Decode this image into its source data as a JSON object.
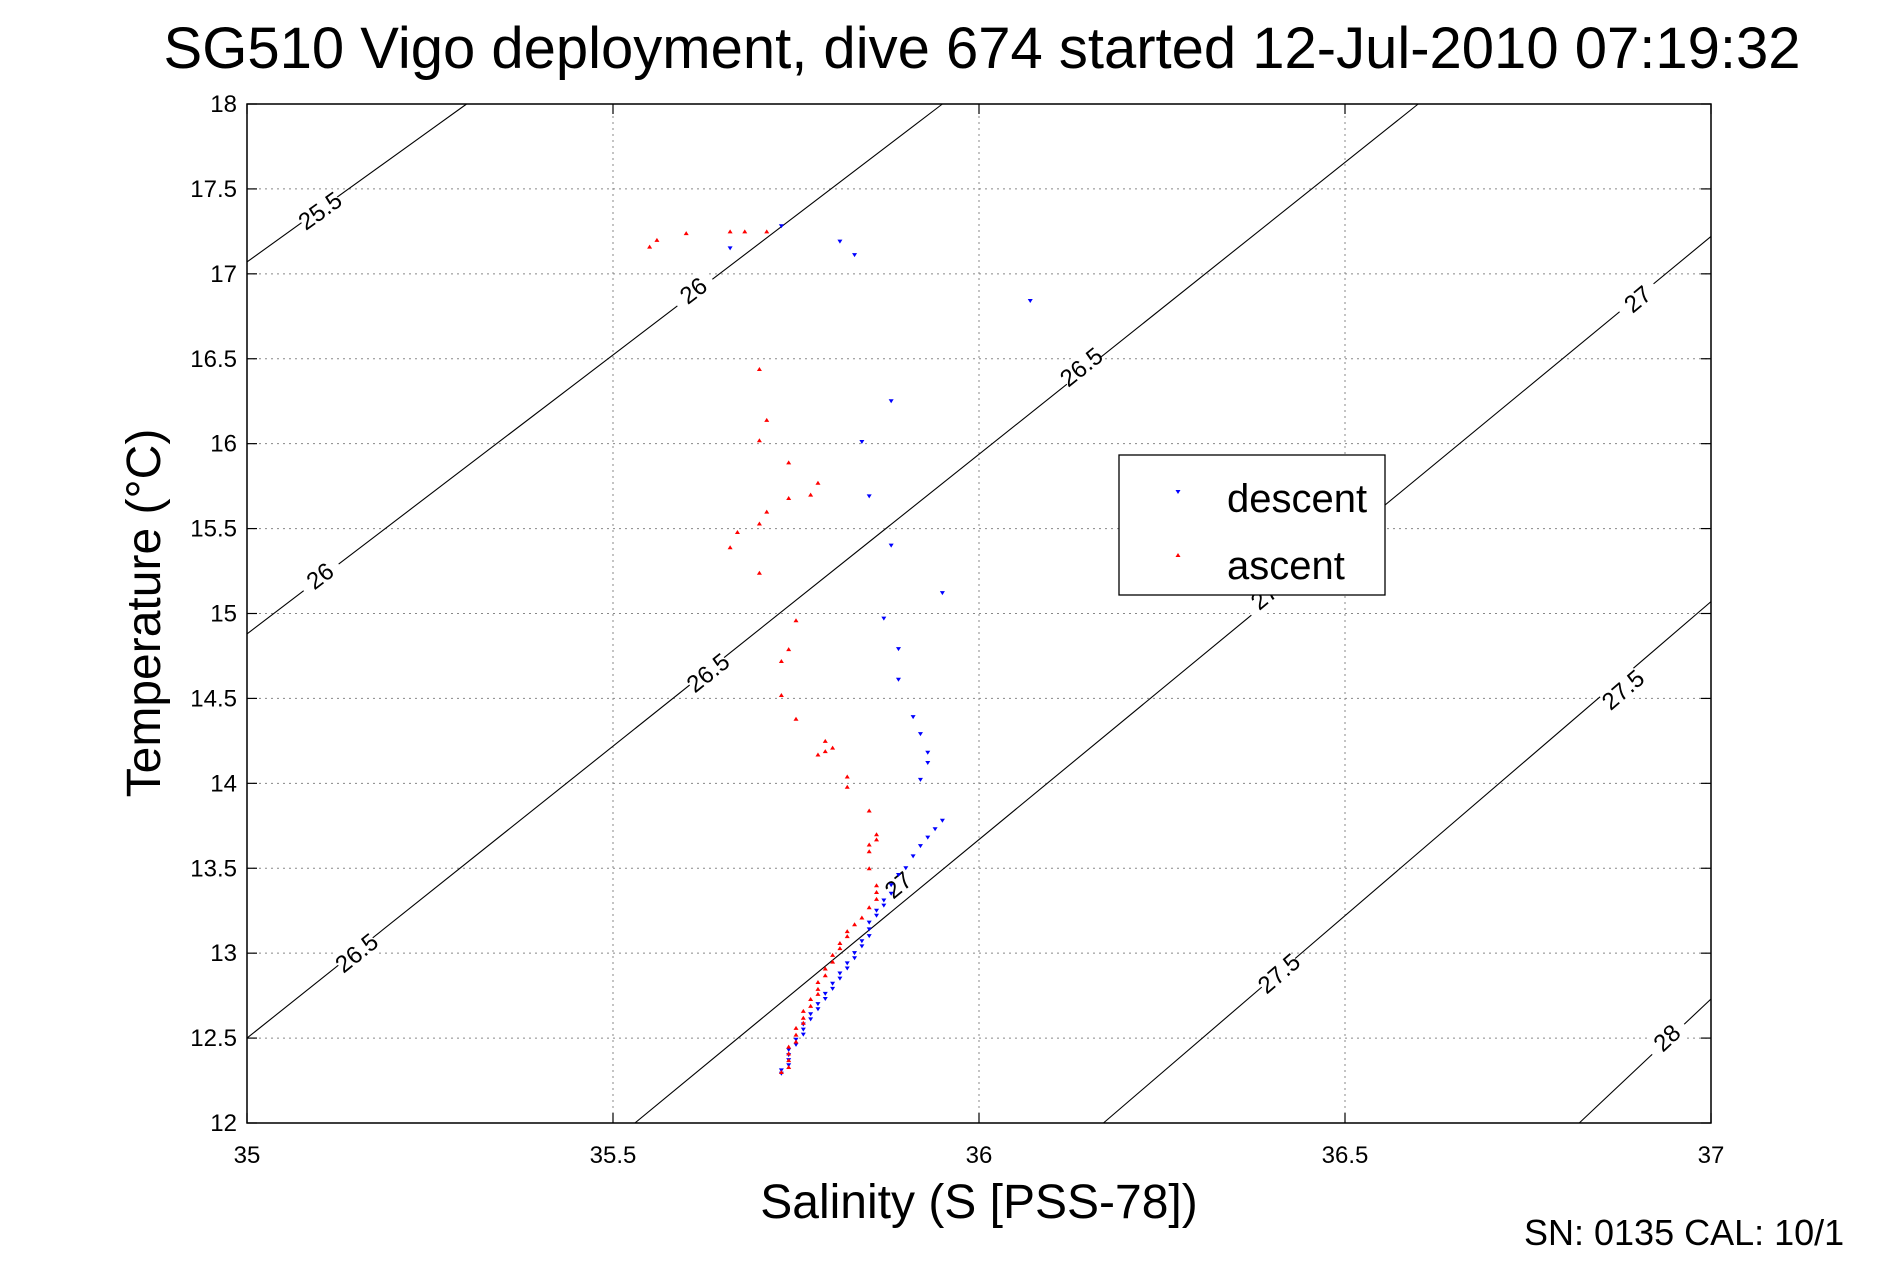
{
  "chart_data": {
    "type": "scatter",
    "title": "SG510 Vigo deployment, dive 674 started 12-Jul-2010 07:19:32",
    "xlabel": "Salinity (S [PSS-78])",
    "ylabel": "Temperature (°C)",
    "xlim": [
      35,
      37
    ],
    "ylim": [
      12,
      18
    ],
    "xticks": [
      "35",
      "35.5",
      "36",
      "36.5",
      "37"
    ],
    "yticks": [
      "12",
      "12.5",
      "13",
      "13.5",
      "14",
      "14.5",
      "15",
      "15.5",
      "16",
      "16.5",
      "17",
      "17.5",
      "18"
    ],
    "grid": true,
    "legend_position": "center-right",
    "footer": "SN: 0135  CAL: 10/1",
    "colors": {
      "descent": "#0000ff",
      "ascent": "#ff0000",
      "contour": "#000000"
    },
    "contours": [
      {
        "level": "25.5",
        "points": [
          [
            35.0,
            17.07
          ],
          [
            35.3,
            18.0
          ]
        ],
        "labels": [
          [
            35.1,
            17.37
          ]
        ]
      },
      {
        "level": "26",
        "points": [
          [
            35.0,
            14.88
          ],
          [
            35.95,
            18.0
          ]
        ],
        "labels": [
          [
            35.1,
            15.22
          ],
          [
            35.61,
            16.9
          ]
        ]
      },
      {
        "level": "26.5",
        "points": [
          [
            35.0,
            12.5
          ],
          [
            36.6,
            18.0
          ]
        ],
        "labels": [
          [
            35.15,
            13.0
          ],
          [
            35.63,
            14.65
          ],
          [
            36.14,
            16.45
          ]
        ]
      },
      {
        "level": "27",
        "points": [
          [
            35.53,
            12.0
          ],
          [
            37.0,
            17.22
          ]
        ],
        "labels": [
          [
            35.89,
            13.4
          ],
          [
            36.39,
            15.1
          ],
          [
            36.9,
            16.85
          ]
        ]
      },
      {
        "level": "27.5",
        "points": [
          [
            36.17,
            12.0
          ],
          [
            37.0,
            15.07
          ]
        ],
        "labels": [
          [
            36.41,
            12.88
          ],
          [
            36.88,
            14.55
          ]
        ]
      },
      {
        "level": "28",
        "points": [
          [
            36.82,
            12.0
          ],
          [
            37.0,
            12.73
          ]
        ],
        "labels": [
          [
            36.94,
            12.5
          ]
        ]
      }
    ],
    "series": [
      {
        "name": "descent",
        "marker": "triangle-down",
        "points": [
          [
            35.73,
            17.28
          ],
          [
            35.66,
            17.15
          ],
          [
            35.81,
            17.19
          ],
          [
            35.83,
            17.11
          ],
          [
            36.07,
            16.84
          ],
          [
            35.88,
            16.25
          ],
          [
            35.84,
            16.01
          ],
          [
            35.85,
            15.69
          ],
          [
            35.88,
            15.4
          ],
          [
            35.95,
            15.12
          ],
          [
            35.87,
            14.97
          ],
          [
            35.89,
            14.79
          ],
          [
            35.89,
            14.61
          ],
          [
            35.91,
            14.39
          ],
          [
            35.92,
            14.29
          ],
          [
            35.93,
            14.18
          ],
          [
            35.93,
            14.12
          ],
          [
            35.92,
            14.02
          ],
          [
            35.95,
            13.78
          ],
          [
            35.94,
            13.73
          ],
          [
            35.93,
            13.68
          ],
          [
            35.92,
            13.63
          ],
          [
            35.91,
            13.57
          ],
          [
            35.9,
            13.5
          ],
          [
            35.89,
            13.46
          ],
          [
            35.88,
            13.4
          ],
          [
            35.88,
            13.35
          ],
          [
            35.87,
            13.31
          ],
          [
            35.87,
            13.28
          ],
          [
            35.86,
            13.25
          ],
          [
            35.86,
            13.22
          ],
          [
            35.85,
            13.18
          ],
          [
            35.85,
            13.14
          ],
          [
            35.85,
            13.1
          ],
          [
            35.84,
            13.07
          ],
          [
            35.84,
            13.04
          ],
          [
            35.83,
            13.0
          ],
          [
            35.83,
            12.97
          ],
          [
            35.82,
            12.94
          ],
          [
            35.82,
            12.91
          ],
          [
            35.81,
            12.88
          ],
          [
            35.81,
            12.85
          ],
          [
            35.8,
            12.82
          ],
          [
            35.8,
            12.79
          ],
          [
            35.79,
            12.76
          ],
          [
            35.79,
            12.73
          ],
          [
            35.78,
            12.7
          ],
          [
            35.78,
            12.67
          ],
          [
            35.77,
            12.64
          ],
          [
            35.77,
            12.61
          ],
          [
            35.76,
            12.58
          ],
          [
            35.76,
            12.55
          ],
          [
            35.76,
            12.52
          ],
          [
            35.75,
            12.49
          ],
          [
            35.75,
            12.46
          ],
          [
            35.74,
            12.43
          ],
          [
            35.74,
            12.4
          ],
          [
            35.74,
            12.37
          ],
          [
            35.74,
            12.34
          ],
          [
            35.73,
            12.31
          ],
          [
            35.73,
            12.29
          ]
        ]
      },
      {
        "name": "ascent",
        "marker": "triangle-up",
        "points": [
          [
            35.55,
            17.16
          ],
          [
            35.56,
            17.2
          ],
          [
            35.6,
            17.24
          ],
          [
            35.66,
            17.25
          ],
          [
            35.68,
            17.25
          ],
          [
            35.71,
            17.25
          ],
          [
            35.7,
            16.44
          ],
          [
            35.71,
            16.14
          ],
          [
            35.7,
            16.02
          ],
          [
            35.74,
            15.89
          ],
          [
            35.78,
            15.77
          ],
          [
            35.77,
            15.7
          ],
          [
            35.74,
            15.68
          ],
          [
            35.71,
            15.6
          ],
          [
            35.7,
            15.53
          ],
          [
            35.67,
            15.48
          ],
          [
            35.66,
            15.39
          ],
          [
            35.7,
            15.24
          ],
          [
            35.75,
            14.96
          ],
          [
            35.74,
            14.79
          ],
          [
            35.73,
            14.72
          ],
          [
            35.73,
            14.52
          ],
          [
            35.75,
            14.38
          ],
          [
            35.79,
            14.25
          ],
          [
            35.8,
            14.21
          ],
          [
            35.79,
            14.19
          ],
          [
            35.78,
            14.17
          ],
          [
            35.82,
            14.04
          ],
          [
            35.82,
            13.98
          ],
          [
            35.85,
            13.84
          ],
          [
            35.86,
            13.7
          ],
          [
            35.86,
            13.67
          ],
          [
            35.85,
            13.64
          ],
          [
            35.85,
            13.6
          ],
          [
            35.85,
            13.5
          ],
          [
            35.86,
            13.4
          ],
          [
            35.86,
            13.36
          ],
          [
            35.86,
            13.32
          ],
          [
            35.85,
            13.27
          ],
          [
            35.84,
            13.21
          ],
          [
            35.83,
            13.17
          ],
          [
            35.82,
            13.13
          ],
          [
            35.82,
            13.1
          ],
          [
            35.81,
            13.06
          ],
          [
            35.81,
            13.03
          ],
          [
            35.8,
            12.99
          ],
          [
            35.8,
            12.95
          ],
          [
            35.79,
            12.91
          ],
          [
            35.79,
            12.87
          ],
          [
            35.78,
            12.83
          ],
          [
            35.78,
            12.79
          ],
          [
            35.78,
            12.76
          ],
          [
            35.77,
            12.73
          ],
          [
            35.77,
            12.69
          ],
          [
            35.76,
            12.66
          ],
          [
            35.76,
            12.62
          ],
          [
            35.76,
            12.59
          ],
          [
            35.75,
            12.56
          ],
          [
            35.75,
            12.52
          ],
          [
            35.75,
            12.48
          ],
          [
            35.74,
            12.45
          ],
          [
            35.74,
            12.41
          ],
          [
            35.74,
            12.37
          ],
          [
            35.74,
            12.33
          ],
          [
            35.73,
            12.3
          ]
        ]
      }
    ]
  }
}
